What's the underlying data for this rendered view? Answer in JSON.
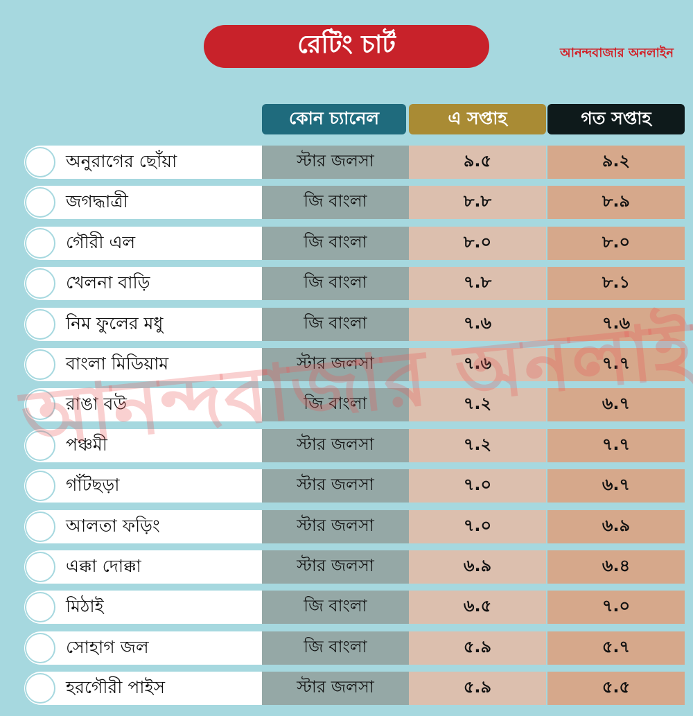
{
  "header": {
    "title": "রেটিং চার্ট",
    "brand": "আনন্দবাজার অনলাইন",
    "watermark": "আনন্দবাজার অনলাইন"
  },
  "chart_data": {
    "type": "table",
    "columns": [
      "কোন চ্যানেল",
      "এ সপ্তাহ",
      "গত সপ্তাহ"
    ],
    "rows": [
      {
        "show": "অনুরাগের ছোঁয়া",
        "channel": "স্টার জলসা",
        "this_week": "৯.৫",
        "last_week": "৯.২"
      },
      {
        "show": "জগদ্ধাত্রী",
        "channel": "জি বাংলা",
        "this_week": "৮.৮",
        "last_week": "৮.৯"
      },
      {
        "show": "গৌরী এল",
        "channel": "জি বাংলা",
        "this_week": "৮.০",
        "last_week": "৮.০"
      },
      {
        "show": "খেলনা বাড়ি",
        "channel": "জি বাংলা",
        "this_week": "৭.৮",
        "last_week": "৮.১"
      },
      {
        "show": "নিম ফুলের মধু",
        "channel": "জি বাংলা",
        "this_week": "৭.৬",
        "last_week": "৭.৬"
      },
      {
        "show": "বাংলা মিডিয়াম",
        "channel": "স্টার জলসা",
        "this_week": "৭.৬",
        "last_week": "৭.৭"
      },
      {
        "show": "রাঙা বউ",
        "channel": "জি বাংলা",
        "this_week": "৭.২",
        "last_week": "৬.৭"
      },
      {
        "show": "পঞ্চমী",
        "channel": "স্টার জলসা",
        "this_week": "৭.২",
        "last_week": "৭.৭"
      },
      {
        "show": "গাঁটছড়া",
        "channel": "স্টার জলসা",
        "this_week": "৭.০",
        "last_week": "৬.৭"
      },
      {
        "show": "আলতা ফড়িং",
        "channel": "স্টার জলসা",
        "this_week": "৭.০",
        "last_week": "৬.৯"
      },
      {
        "show": "এক্কা দোক্কা",
        "channel": "স্টার জলসা",
        "this_week": "৬.৯",
        "last_week": "৬.৪"
      },
      {
        "show": "মিঠাই",
        "channel": "জি বাংলা",
        "this_week": "৬.৫",
        "last_week": "৭.০"
      },
      {
        "show": "সোহাগ জল",
        "channel": "জি বাংলা",
        "this_week": "৫.৯",
        "last_week": "৫.৭"
      },
      {
        "show": "হরগৌরী পাইস",
        "channel": "স্টার জলসা",
        "this_week": "৫.৯",
        "last_week": "৫.৫"
      }
    ]
  },
  "colors": {
    "background": "#a6d8df",
    "title_pill": "#c8222a",
    "channel_header": "#1f6b7d",
    "this_week_header": "#a98b34",
    "last_week_header": "#0e1a1b"
  }
}
